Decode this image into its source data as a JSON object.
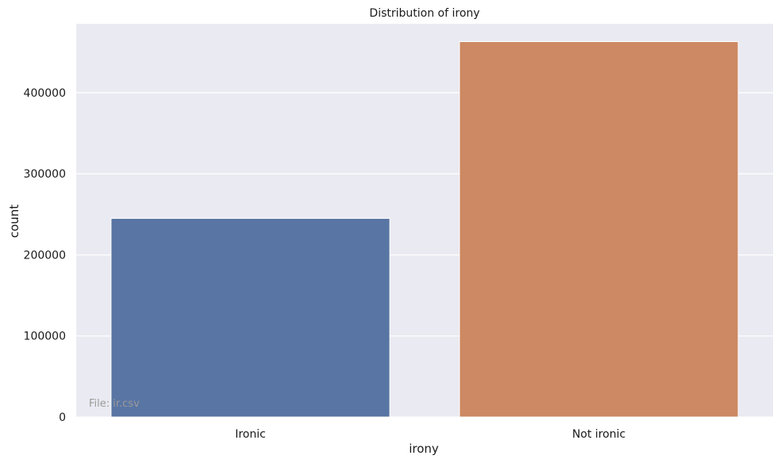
{
  "chart_data": {
    "type": "bar",
    "title": "Distribution of irony",
    "xlabel": "irony",
    "ylabel": "count",
    "categories": [
      "Ironic",
      "Not ironic"
    ],
    "values": [
      245000,
      463000
    ],
    "colors": [
      "#5975a4",
      "#cc8963"
    ],
    "ylim": [
      0,
      485000
    ],
    "yticks": [
      0,
      100000,
      200000,
      300000,
      400000
    ],
    "ytick_labels": [
      "0",
      "100000",
      "200000",
      "300000",
      "400000"
    ],
    "grid": true,
    "background": "#eaeaf2",
    "grid_color": "#ffffff"
  },
  "watermark": "File: ir.csv"
}
